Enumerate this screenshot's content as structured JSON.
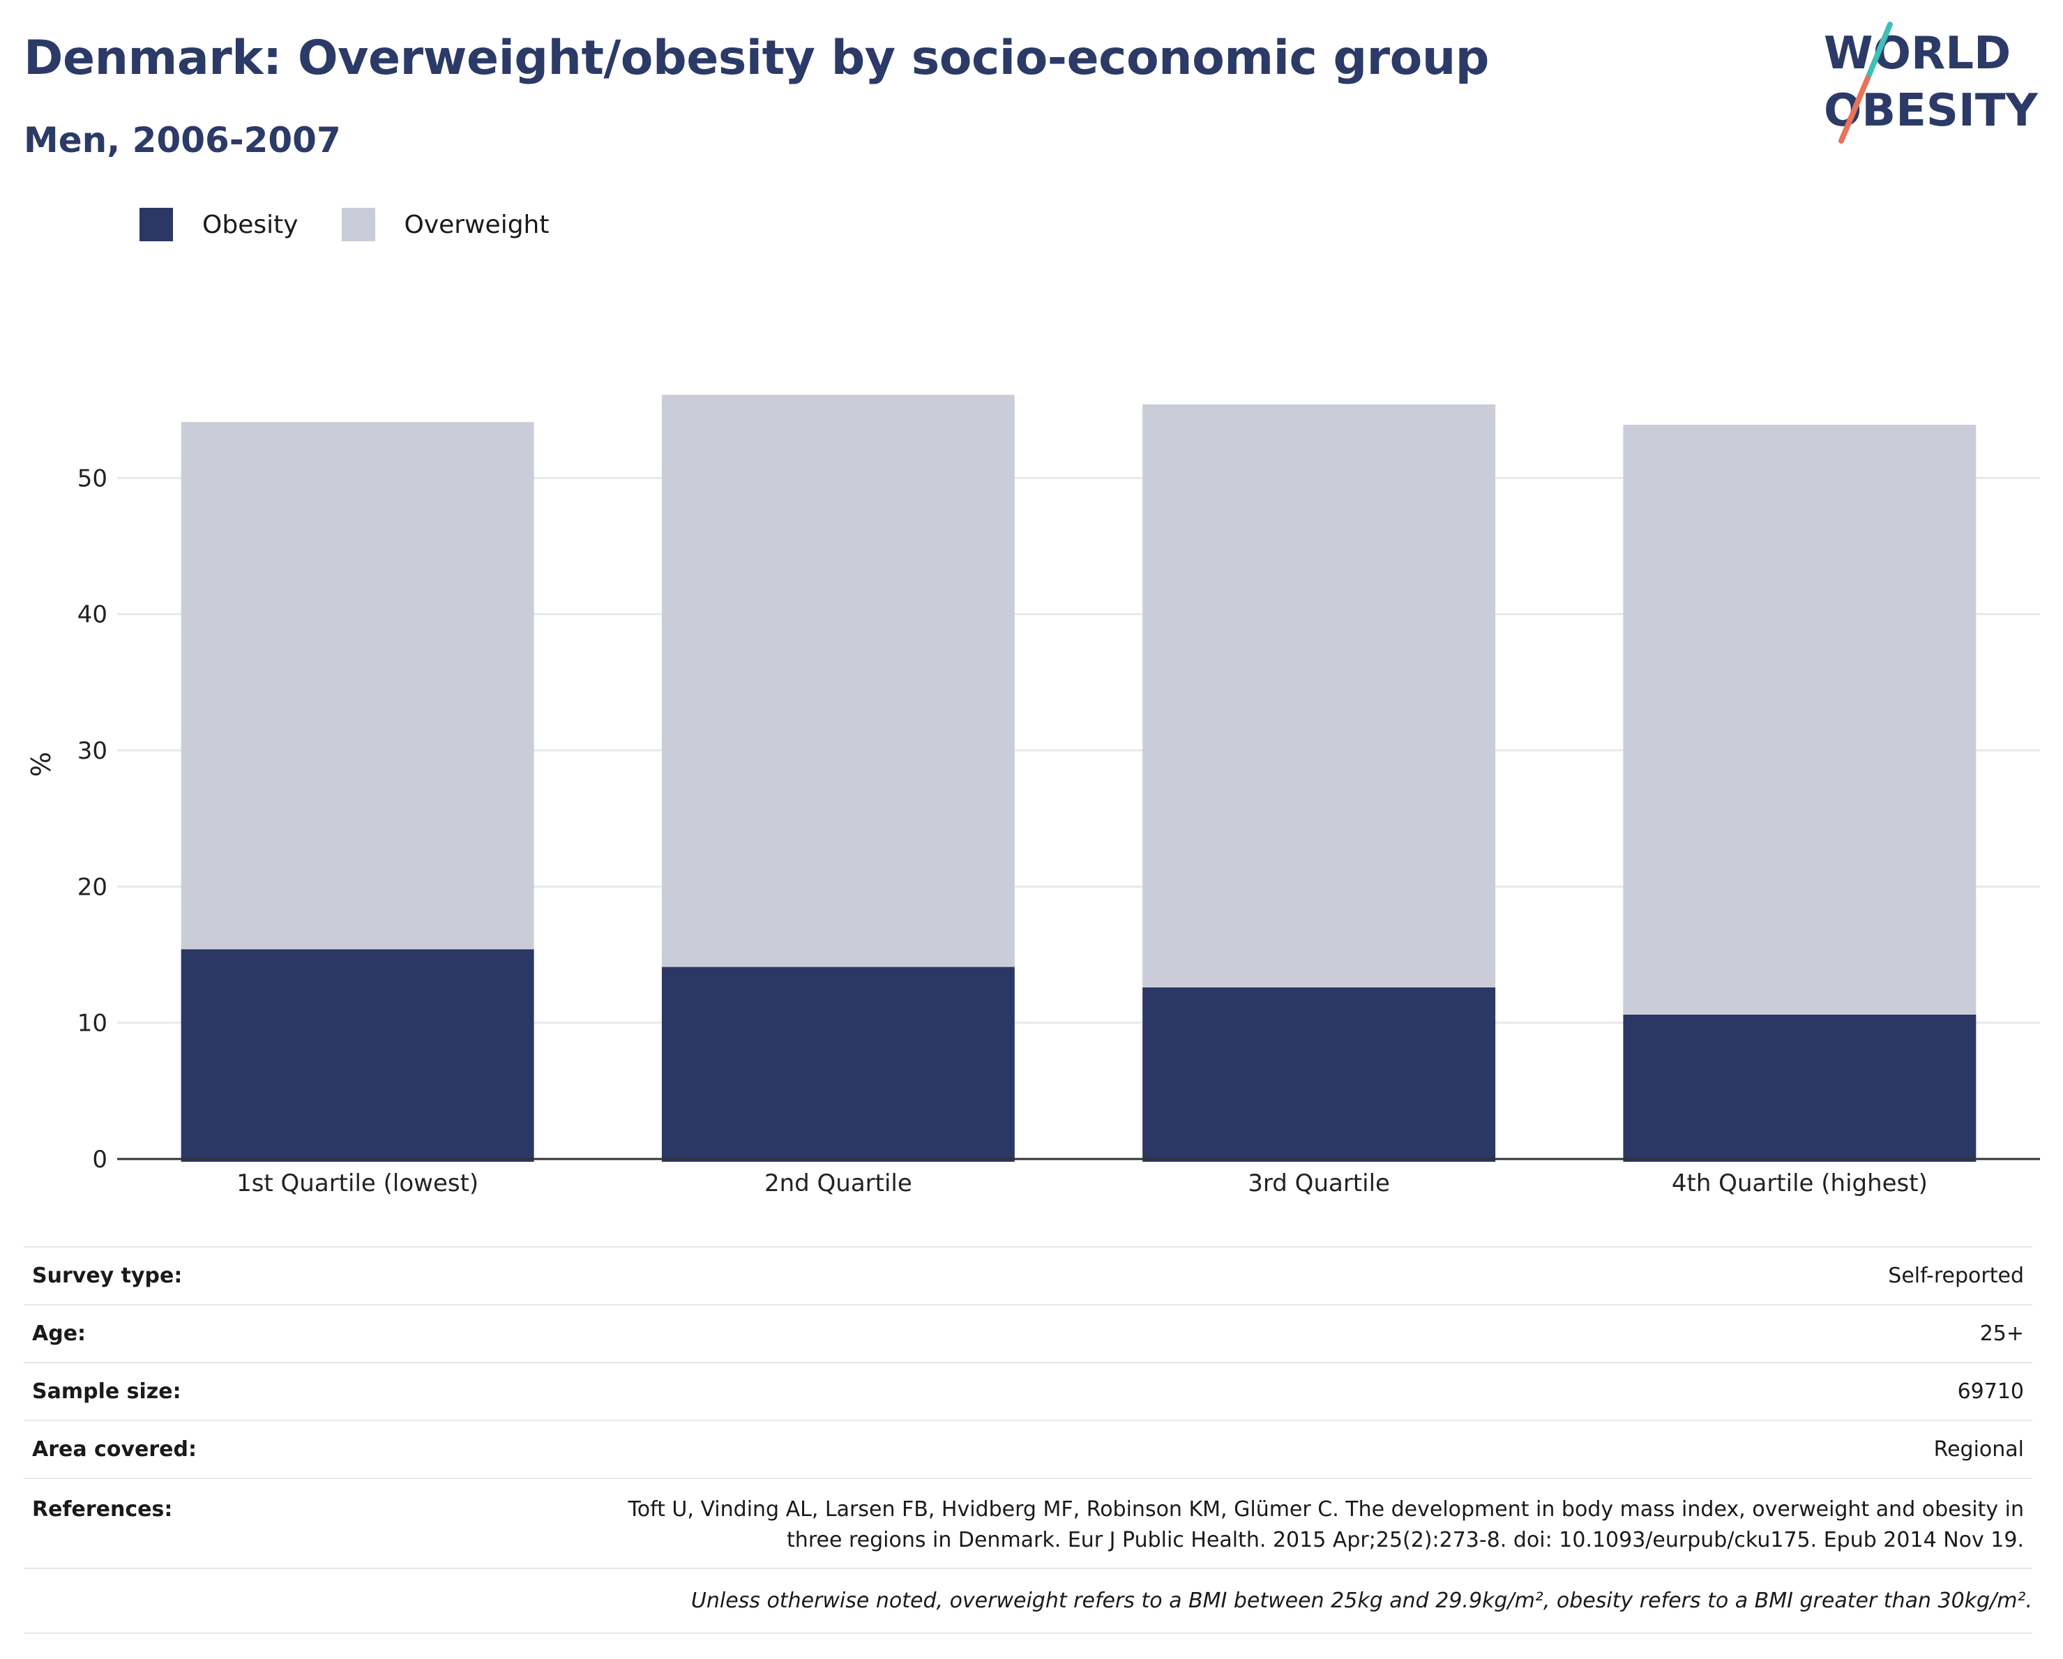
{
  "header": {
    "title": "Denmark: Overweight/obesity by socio-economic group",
    "subtitle": "Men, 2006-2007"
  },
  "logo": {
    "line1": "WORLD",
    "line2": "OBESITY"
  },
  "colors": {
    "obesity": "#2b3764",
    "overweight": "#cacdd8",
    "title": "#2b3a67",
    "logo_teal": "#3fbfb6",
    "logo_coral": "#e8735a",
    "grid": "#e8e9ee",
    "axis": "#333333"
  },
  "legend": [
    {
      "label": "Obesity",
      "color": "#2b3764"
    },
    {
      "label": "Overweight",
      "color": "#cacdd8"
    }
  ],
  "chart_data": {
    "type": "bar",
    "stacked": true,
    "categories": [
      "1st Quartile (lowest)",
      "2nd Quartile",
      "3rd Quartile",
      "4th Quartile (highest)"
    ],
    "series": [
      {
        "name": "Obesity",
        "values": [
          15.4,
          14.1,
          12.6,
          10.6
        ]
      },
      {
        "name": "Overweight",
        "values": [
          38.7,
          42.0,
          42.8,
          43.3
        ]
      }
    ],
    "ylabel": "%",
    "xlabel": "",
    "ylim": [
      0,
      60
    ],
    "yticks": [
      0,
      10,
      20,
      30,
      40,
      50
    ],
    "grid": true,
    "legend_position": "top-left"
  },
  "info": [
    {
      "label": "Survey type:",
      "value": "Self-reported"
    },
    {
      "label": "Age:",
      "value": "25+"
    },
    {
      "label": "Sample size:",
      "value": "69710"
    },
    {
      "label": "Area covered:",
      "value": "Regional"
    }
  ],
  "references": {
    "label": "References:",
    "line1": "Toft U, Vinding AL, Larsen FB, Hvidberg MF, Robinson KM, Glümer C. The development in body mass index, overweight and obesity in",
    "line2": "three regions in Denmark. Eur J Public Health. 2015 Apr;25(2):273-8. doi: 10.1093/eurpub/cku175. Epub 2014 Nov 19."
  },
  "note": "Unless otherwise noted, overweight refers to a BMI between 25kg and 29.9kg/m², obesity refers to a BMI greater than 30kg/m²."
}
